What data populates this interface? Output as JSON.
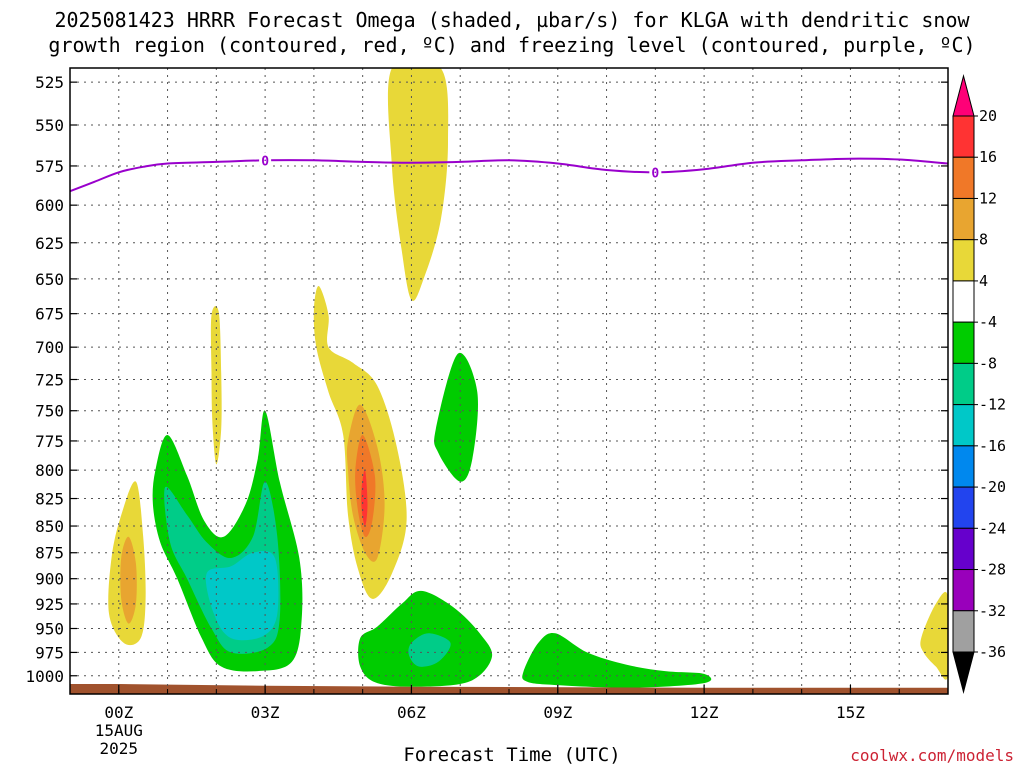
{
  "chart_data": {
    "type": "contour",
    "title": "2025081423 HRRR Forecast Omega (shaded, μbar/s) for KLGA with dendritic snow growth region (contoured, red, °C) and freezing level (contoured, purple, °C)",
    "title_lines": [
      "2025081423 HRRR Forecast Omega (shaded, µbar/s) for KLGA with dendritic snow",
      "growth region (contoured, red, ºC) and freezing level (contoured, purple, ºC)"
    ],
    "xlabel": "Forecast Time (UTC)",
    "x_ticks": [
      {
        "label": "00Z",
        "hour": 0,
        "sub": [
          "15AUG",
          "2025"
        ]
      },
      {
        "label": "03Z",
        "hour": 3,
        "sub": []
      },
      {
        "label": "06Z",
        "hour": 6,
        "sub": []
      },
      {
        "label": "09Z",
        "hour": 9,
        "sub": []
      },
      {
        "label": "12Z",
        "hour": 12,
        "sub": []
      },
      {
        "label": "15Z",
        "hour": 15,
        "sub": []
      }
    ],
    "xlim_hours": [
      -1,
      17
    ],
    "ylabel_values": [
      525,
      550,
      575,
      600,
      625,
      650,
      675,
      700,
      725,
      750,
      775,
      800,
      825,
      850,
      875,
      900,
      925,
      950,
      975,
      1000
    ],
    "ylim_mb": [
      517,
      1020
    ],
    "y_scale": "log",
    "grid": true,
    "colorbar": {
      "labels": [
        "20",
        "16",
        "12",
        "8",
        "4",
        "-4",
        "-8",
        "-12",
        "-16",
        "-20",
        "-24",
        "-28",
        "-32",
        "-36"
      ],
      "bins": [
        {
          "color": "#ff0077"
        },
        {
          "color": "#ff3333"
        },
        {
          "color": "#f07828"
        },
        {
          "color": "#e8a530"
        },
        {
          "color": "#e8d838"
        },
        {
          "color": "#ffffff"
        },
        {
          "color": "#00cc00"
        },
        {
          "color": "#00cc88"
        },
        {
          "color": "#00c8c8"
        },
        {
          "color": "#0088ee"
        },
        {
          "color": "#2244ee"
        },
        {
          "color": "#6600cc"
        },
        {
          "color": "#9900bb"
        },
        {
          "color": "#a0a0a0"
        },
        {
          "color": "#000000"
        }
      ]
    },
    "freezing_level": {
      "color": "#9900cc",
      "label": "0",
      "points": [
        [
          -1,
          591
        ],
        [
          -0.5,
          585
        ],
        [
          0,
          579
        ],
        [
          0.5,
          575.5
        ],
        [
          1,
          573.5
        ],
        [
          2,
          572.5
        ],
        [
          3,
          571.5
        ],
        [
          4,
          571.5
        ],
        [
          5,
          572.5
        ],
        [
          6,
          573
        ],
        [
          7,
          572.5
        ],
        [
          8,
          571.5
        ],
        [
          9,
          573.5
        ],
        [
          10,
          577.5
        ],
        [
          11,
          579
        ],
        [
          12,
          577
        ],
        [
          13,
          573
        ],
        [
          14,
          571.5
        ],
        [
          15,
          570.5
        ],
        [
          16,
          571
        ],
        [
          17,
          573.5
        ]
      ],
      "label_positions": [
        [
          3,
          571.5
        ],
        [
          11,
          579
        ]
      ]
    },
    "omega_regions": [
      {
        "value": 4,
        "color": "#e8d838",
        "points": [
          [
            5.6,
            517
          ],
          [
            6.6,
            517
          ],
          [
            6.75,
            560
          ],
          [
            6.6,
            610
          ],
          [
            6.25,
            650
          ],
          [
            6.0,
            665
          ],
          [
            5.8,
            630
          ],
          [
            5.6,
            575
          ]
        ]
      },
      {
        "value": 4,
        "color": "#e8d838",
        "points": [
          [
            1.9,
            676
          ],
          [
            2.05,
            674
          ],
          [
            2.1,
            720
          ],
          [
            2.1,
            765
          ],
          [
            2.0,
            795
          ],
          [
            1.92,
            760
          ],
          [
            1.9,
            720
          ]
        ]
      },
      {
        "value": 4,
        "color": "#e8d838",
        "points": [
          [
            4.0,
            672
          ],
          [
            4.1,
            655
          ],
          [
            4.3,
            676
          ],
          [
            4.3,
            700
          ],
          [
            4.8,
            712
          ],
          [
            5.3,
            730
          ],
          [
            5.7,
            780
          ],
          [
            5.9,
            845
          ],
          [
            5.6,
            895
          ],
          [
            5.2,
            920
          ],
          [
            4.9,
            890
          ],
          [
            4.7,
            840
          ],
          [
            4.6,
            770
          ],
          [
            4.3,
            735
          ],
          [
            4.05,
            700
          ]
        ]
      },
      {
        "value": 4,
        "color": "#e8d838",
        "points": [
          [
            -0.15,
            880
          ],
          [
            0.05,
            840
          ],
          [
            0.35,
            810
          ],
          [
            0.5,
            860
          ],
          [
            0.55,
            920
          ],
          [
            0.45,
            960
          ],
          [
            0.1,
            965
          ],
          [
            -0.2,
            935
          ]
        ]
      },
      {
        "value": 4,
        "color": "#e8d838",
        "points": [
          [
            16.45,
            960
          ],
          [
            16.75,
            925
          ],
          [
            17,
            918
          ],
          [
            17,
            1000
          ],
          [
            16.75,
            990
          ],
          [
            16.5,
            975
          ]
        ]
      },
      {
        "value": 8,
        "color": "#e8a530",
        "points": [
          [
            4.7,
            775
          ],
          [
            4.95,
            745
          ],
          [
            5.3,
            780
          ],
          [
            5.45,
            830
          ],
          [
            5.3,
            880
          ],
          [
            5.05,
            875
          ],
          [
            4.8,
            840
          ],
          [
            4.7,
            800
          ]
        ]
      },
      {
        "value": 8,
        "color": "#e8a530",
        "points": [
          [
            0.05,
            880
          ],
          [
            0.2,
            860
          ],
          [
            0.35,
            885
          ],
          [
            0.35,
            925
          ],
          [
            0.2,
            945
          ],
          [
            0.05,
            920
          ]
        ]
      },
      {
        "value": 12,
        "color": "#f07828",
        "points": [
          [
            4.85,
            800
          ],
          [
            5.0,
            770
          ],
          [
            5.25,
            805
          ],
          [
            5.2,
            845
          ],
          [
            5.05,
            860
          ],
          [
            4.9,
            835
          ]
        ]
      },
      {
        "value": 16,
        "color": "#ff3333",
        "points": [
          [
            4.98,
            815
          ],
          [
            5.05,
            800
          ],
          [
            5.1,
            830
          ],
          [
            5.05,
            850
          ],
          [
            4.98,
            835
          ]
        ]
      },
      {
        "value": -4,
        "color": "#00cc00",
        "points": [
          [
            0.75,
            800
          ],
          [
            1.0,
            770
          ],
          [
            1.4,
            805
          ],
          [
            1.75,
            845
          ],
          [
            2.15,
            860
          ],
          [
            2.6,
            830
          ],
          [
            2.85,
            790
          ],
          [
            3.0,
            750
          ],
          [
            3.3,
            810
          ],
          [
            3.7,
            880
          ],
          [
            3.75,
            940
          ],
          [
            3.55,
            985
          ],
          [
            2.85,
            995
          ],
          [
            2.1,
            990
          ],
          [
            1.7,
            960
          ],
          [
            1.2,
            900
          ],
          [
            0.85,
            865
          ],
          [
            0.7,
            830
          ]
        ]
      },
      {
        "value": -4,
        "color": "#00cc00",
        "points": [
          [
            6.5,
            765
          ],
          [
            6.95,
            705
          ],
          [
            7.35,
            735
          ],
          [
            7.25,
            790
          ],
          [
            7.0,
            810
          ],
          [
            6.55,
            785
          ]
        ]
      },
      {
        "value": -4,
        "color": "#00cc00",
        "points": [
          [
            4.95,
            960
          ],
          [
            5.3,
            948
          ],
          [
            5.8,
            925
          ],
          [
            6.2,
            912
          ],
          [
            6.85,
            928
          ],
          [
            7.4,
            955
          ],
          [
            7.65,
            980
          ],
          [
            7.2,
            1006
          ],
          [
            6.2,
            1012
          ],
          [
            5.3,
            1008
          ],
          [
            4.95,
            990
          ]
        ]
      },
      {
        "value": -4,
        "color": "#00cc00",
        "points": [
          [
            8.3,
            995
          ],
          [
            8.6,
            965
          ],
          [
            8.95,
            955
          ],
          [
            9.6,
            975
          ],
          [
            10.4,
            988
          ],
          [
            11.2,
            995
          ],
          [
            12.0,
            998
          ],
          [
            12.0,
            1008
          ],
          [
            10.5,
            1013
          ],
          [
            8.9,
            1010
          ],
          [
            8.35,
            1006
          ]
        ]
      },
      {
        "value": -8,
        "color": "#00cc88",
        "points": [
          [
            0.95,
            815
          ],
          [
            1.4,
            840
          ],
          [
            1.8,
            865
          ],
          [
            2.3,
            880
          ],
          [
            2.75,
            860
          ],
          [
            3.0,
            810
          ],
          [
            3.25,
            860
          ],
          [
            3.3,
            940
          ],
          [
            3.05,
            970
          ],
          [
            2.3,
            975
          ],
          [
            1.9,
            950
          ],
          [
            1.4,
            900
          ],
          [
            1.05,
            865
          ]
        ]
      },
      {
        "value": -8,
        "color": "#00cc88",
        "points": [
          [
            6.0,
            965
          ],
          [
            6.35,
            955
          ],
          [
            6.8,
            965
          ],
          [
            6.55,
            985
          ],
          [
            6.15,
            990
          ],
          [
            5.95,
            978
          ]
        ]
      },
      {
        "value": -12,
        "color": "#00c8c8",
        "points": [
          [
            1.8,
            895
          ],
          [
            2.3,
            888
          ],
          [
            2.75,
            875
          ],
          [
            3.2,
            880
          ],
          [
            3.25,
            935
          ],
          [
            2.95,
            958
          ],
          [
            2.3,
            960
          ],
          [
            1.95,
            935
          ]
        ]
      }
    ],
    "ground": {
      "color": "#a0522d",
      "top_points": [
        [
          -1,
          1009
        ],
        [
          0,
          1009
        ],
        [
          3,
          1011
        ],
        [
          6,
          1012
        ],
        [
          12,
          1013
        ],
        [
          17,
          1013
        ]
      ],
      "bottom_mb": 1020
    }
  },
  "credit": "coolwx.com/models"
}
